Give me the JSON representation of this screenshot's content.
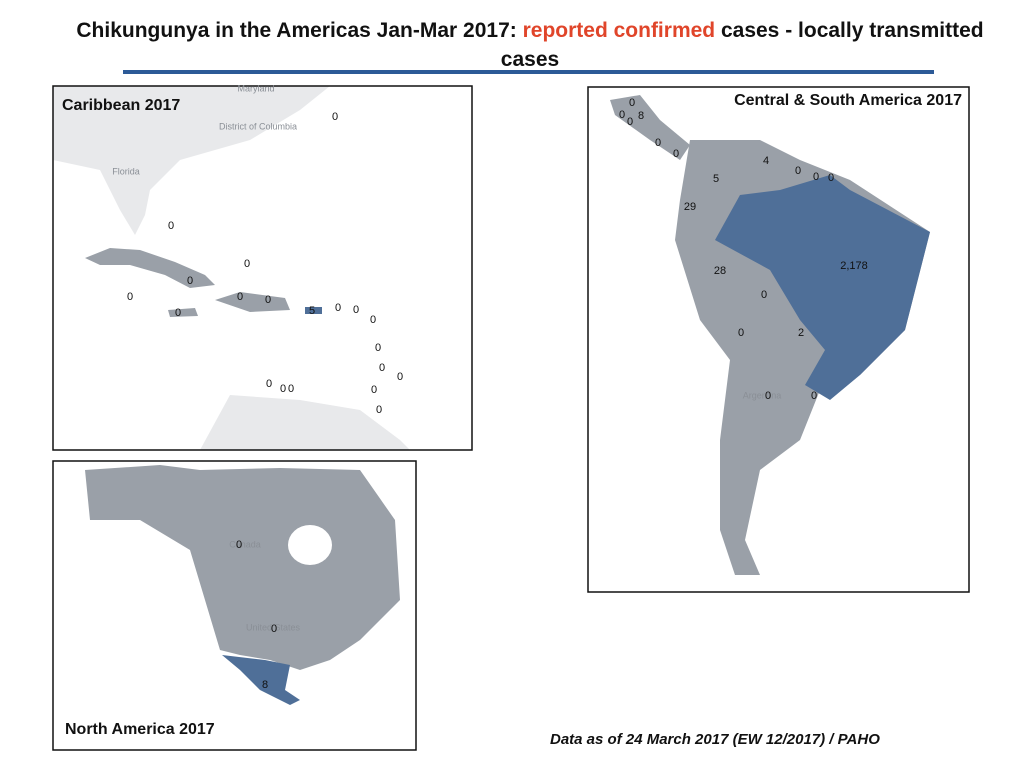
{
  "title": {
    "before": "Chikungunya in the Americas Jan-Mar 2017:",
    "highlight": "reported confirmed",
    "after": "cases - locally transmitted cases"
  },
  "panels": [
    {
      "title": "Caribbean 2017",
      "place_labels": [
        "Maryland",
        "District of Columbia",
        "Florida"
      ],
      "case_labels": [
        "0",
        "0",
        "0",
        "0",
        "0",
        "0",
        "0",
        "0",
        "5",
        "0",
        "0",
        "0",
        "0",
        "0",
        "0",
        "0",
        "0",
        "0",
        "0",
        "0"
      ]
    },
    {
      "title": "Central & South America  2017",
      "place_labels": [
        "Argentina"
      ],
      "case_labels": [
        "0",
        "0",
        "8",
        "0",
        "0",
        "0",
        "4",
        "0",
        "0",
        "0",
        "5",
        "29",
        "28",
        "2,178",
        "0",
        "0",
        "2",
        "0",
        "0"
      ]
    },
    {
      "title": "North America 2017",
      "place_labels": [
        "Canada",
        "United States"
      ],
      "case_labels": [
        "0",
        "0",
        "8"
      ]
    }
  ],
  "source": "Data as of 24 March 2017 (EW 12/2017) / PAHO"
}
